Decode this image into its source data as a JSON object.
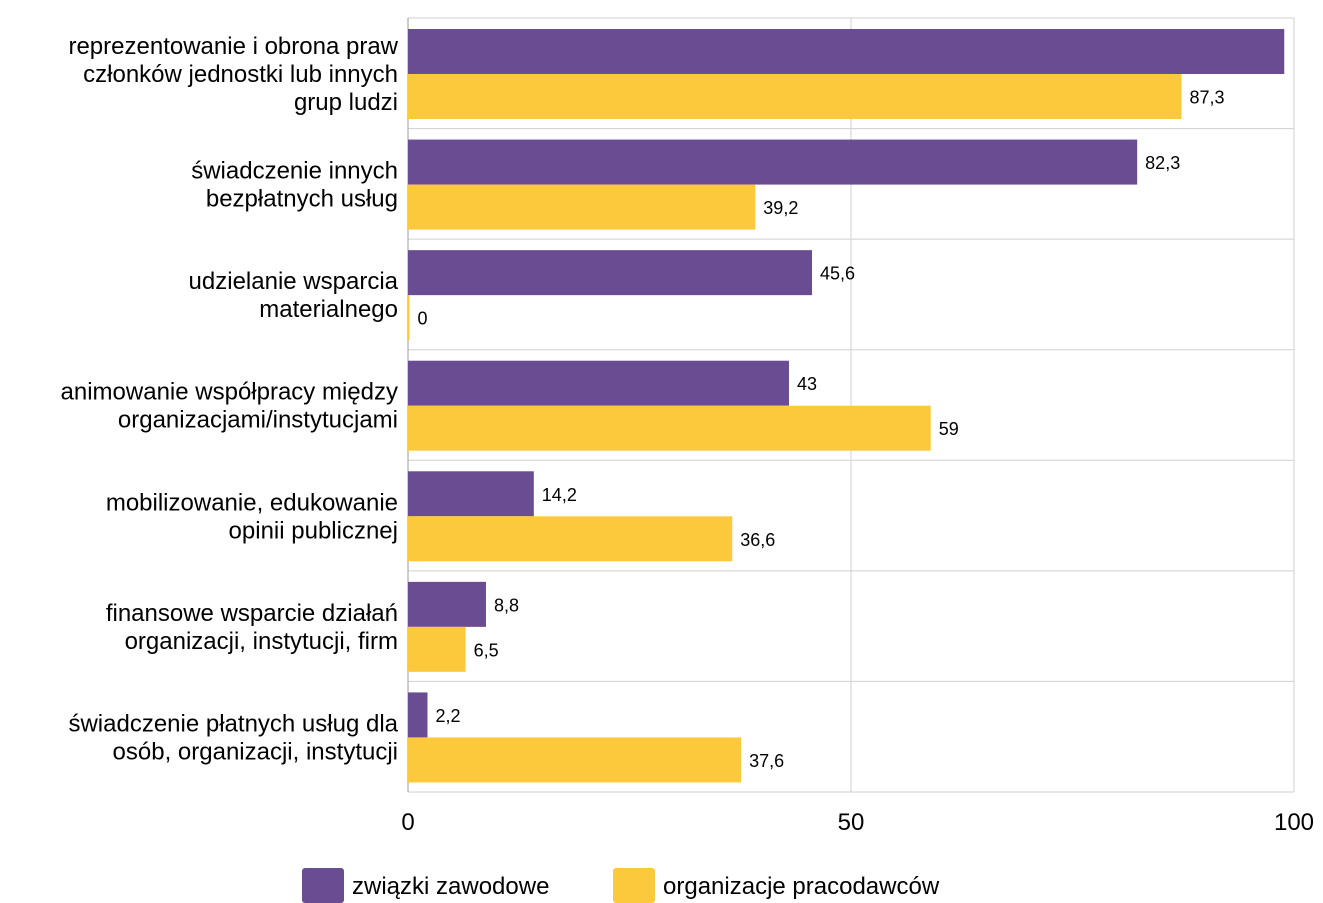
{
  "chart_data": {
    "type": "bar",
    "orientation": "horizontal",
    "categories": [
      [
        "reprezentowanie i obrona praw",
        "członków jednostki lub innych",
        "grup ludzi"
      ],
      [
        "świadczenie innych",
        "bezpłatnych usług"
      ],
      [
        "udzielanie wsparcia",
        "materialnego"
      ],
      [
        "animowanie współpracy między",
        "organizacjami/instytucjami"
      ],
      [
        "mobilizowanie, edukowanie",
        "opinii publicznej"
      ],
      [
        "finansowe wsparcie działań",
        "organizacji, instytucji, firm"
      ],
      [
        "świadczenie płatnych usług dla",
        "osób, organizacji, instytucji"
      ]
    ],
    "series": [
      {
        "name": "związki zawodowe",
        "color": "#6a4c93",
        "values": [
          98.9,
          82.3,
          45.6,
          43,
          14.2,
          8.8,
          2.2
        ],
        "labels": [
          "",
          "82,3",
          "45,6",
          "43",
          "14,2",
          "8,8",
          "2,2"
        ]
      },
      {
        "name": "organizacje pracodawców",
        "color": "#fdc93c",
        "values": [
          87.3,
          39.2,
          0,
          59,
          36.6,
          6.5,
          37.6
        ],
        "labels": [
          "87,3",
          "39,2",
          "0",
          "59",
          "36,6",
          "6,5",
          "37,6"
        ]
      }
    ],
    "xlim": [
      0,
      100
    ],
    "xticks": [
      "0",
      "50",
      "100"
    ],
    "grid": true,
    "legend_position": "bottom"
  }
}
